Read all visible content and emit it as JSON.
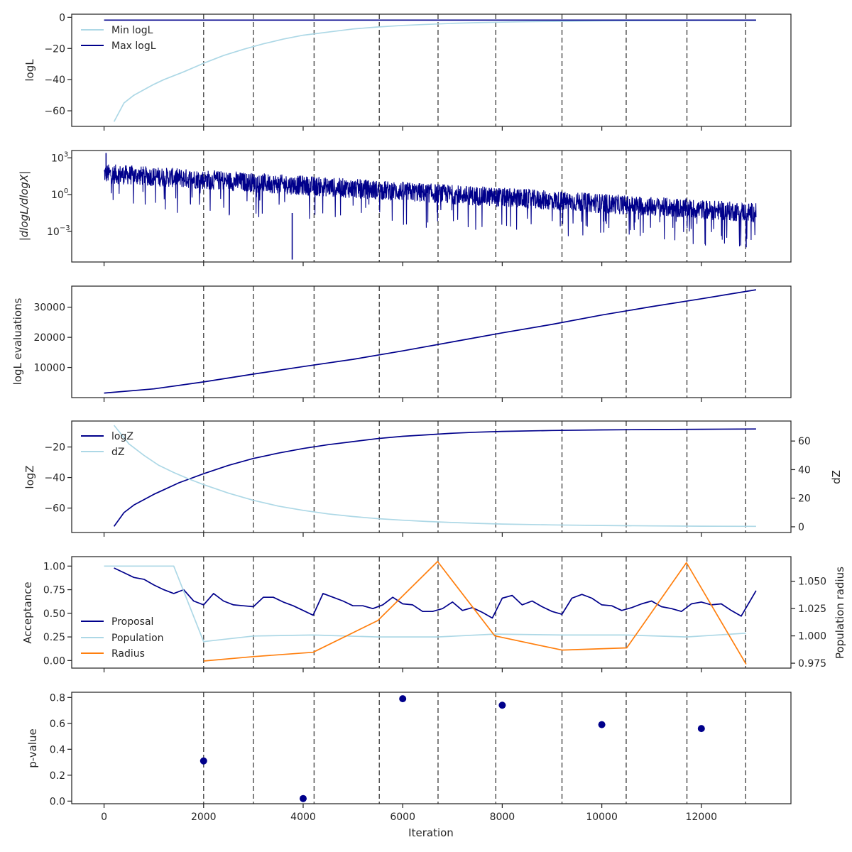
{
  "colors": {
    "navy": "#00008b",
    "lightblue": "#add8e6",
    "orange": "#ff7f0e",
    "dashed": "#555555"
  },
  "chart_data": [
    {
      "id": "loglikelihood",
      "type": "line",
      "ylabel": "logL",
      "ylim": [
        -70,
        2
      ],
      "yticks": [
        {
          "v": 0,
          "label": "0"
        },
        {
          "v": -20,
          "label": "−20"
        },
        {
          "v": -40,
          "label": "−40"
        },
        {
          "v": -60,
          "label": "−60"
        }
      ],
      "legend": {
        "position": "upper-left",
        "entries": [
          "Min logL",
          "Max logL"
        ]
      },
      "series": [
        {
          "name": "Min logL",
          "color": "lightblue",
          "x": [
            200,
            400,
            600,
            800,
            1000,
            1200,
            1400,
            1600,
            2000,
            2400,
            2800,
            3200,
            3600,
            4000,
            4500,
            5000,
            5500,
            6000,
            6500,
            7000,
            7500,
            8000,
            8500,
            9000,
            10000,
            11000,
            12000,
            13100
          ],
          "y": [
            -67,
            -55,
            -50,
            -46.5,
            -43,
            -40,
            -37.5,
            -35,
            -29.5,
            -24.5,
            -20.5,
            -17,
            -14,
            -11.5,
            -9.5,
            -7.5,
            -6.2,
            -5.2,
            -4.5,
            -3.9,
            -3.4,
            -3.1,
            -2.8,
            -2.6,
            -2.3,
            -2.1,
            -2.0,
            -1.9
          ]
        },
        {
          "name": "Max logL",
          "color": "navy",
          "x": [
            0,
            13100
          ],
          "y": [
            -1.8,
            -1.8
          ]
        }
      ]
    },
    {
      "id": "dlogl",
      "type": "line",
      "ylabel": "|dlogL/dlogX|",
      "yscale": "log",
      "ylim": [
        -5.5,
        3.6
      ],
      "yticks": [
        {
          "v": 3,
          "label": "10",
          "sup": "3"
        },
        {
          "v": 0,
          "label": "10",
          "sup": "0"
        },
        {
          "v": -3,
          "label": "10",
          "sup": "−3"
        }
      ],
      "series": [
        {
          "name": "|dlogL/dlogX|",
          "color": "navy",
          "trend": {
            "x": [
              0,
              13100
            ],
            "log10": [
              1.8,
              -1.4
            ]
          },
          "spikes": [
            {
              "x": 40,
              "log10": 3.4
            },
            {
              "x": 3780,
              "log10": -5.3
            },
            {
              "x": 12900,
              "log10": -4.3
            }
          ]
        }
      ]
    },
    {
      "id": "evaluations",
      "type": "line",
      "ylabel": "logL evaluations",
      "ylim": [
        0,
        37000
      ],
      "yticks": [
        {
          "v": 10000,
          "label": "10000"
        },
        {
          "v": 20000,
          "label": "20000"
        },
        {
          "v": 30000,
          "label": "30000"
        }
      ],
      "series": [
        {
          "name": "logL evaluations",
          "color": "navy",
          "x": [
            0,
            1000,
            2000,
            3000,
            4000,
            5000,
            6000,
            7000,
            8000,
            9000,
            10000,
            11000,
            12000,
            13100
          ],
          "y": [
            1500,
            2900,
            5200,
            7800,
            10300,
            12700,
            15500,
            18500,
            21500,
            24300,
            27400,
            30200,
            32800,
            35800
          ]
        }
      ]
    },
    {
      "id": "evidence",
      "type": "line",
      "ylabel": "logZ",
      "ylabel_right": "dZ",
      "ylim": [
        -76,
        -3
      ],
      "ylim_right": [
        -4,
        74
      ],
      "yticks": [
        {
          "v": -20,
          "label": "−20"
        },
        {
          "v": -40,
          "label": "−40"
        },
        {
          "v": -60,
          "label": "−60"
        }
      ],
      "yticks_right": [
        {
          "v": 0,
          "label": "0"
        },
        {
          "v": 20,
          "label": "20"
        },
        {
          "v": 40,
          "label": "40"
        },
        {
          "v": 60,
          "label": "60"
        }
      ],
      "legend": {
        "position": "upper-left",
        "entries": [
          "logZ",
          "dZ"
        ]
      },
      "series": [
        {
          "name": "logZ",
          "color": "navy",
          "axis": "left",
          "x": [
            200,
            400,
            600,
            800,
            1000,
            1200,
            1500,
            2000,
            2500,
            3000,
            3500,
            4000,
            4500,
            5000,
            5500,
            6000,
            6500,
            7000,
            7500,
            8000,
            9000,
            10000,
            11000,
            12000,
            13100
          ],
          "y": [
            -72,
            -63,
            -58,
            -54.5,
            -51,
            -48,
            -43.5,
            -37.5,
            -32,
            -27.5,
            -24,
            -21,
            -18.5,
            -16.5,
            -14.5,
            -13,
            -12,
            -11,
            -10.3,
            -9.8,
            -9.2,
            -8.8,
            -8.6,
            -8.4,
            -8.2
          ]
        },
        {
          "name": "dZ",
          "color": "lightblue",
          "axis": "right",
          "x": [
            200,
            500,
            800,
            1100,
            1400,
            1700,
            2000,
            2500,
            3000,
            3500,
            4000,
            4500,
            5000,
            5500,
            6000,
            6500,
            7000,
            7500,
            8000,
            9000,
            10000,
            11000,
            12000,
            13100
          ],
          "y": [
            71,
            58,
            50,
            43,
            38,
            33.5,
            29.5,
            23.5,
            18.5,
            14.5,
            11.5,
            9,
            7.2,
            5.7,
            4.6,
            3.7,
            3.0,
            2.4,
            1.9,
            1.3,
            0.9,
            0.6,
            0.4,
            0.3
          ]
        }
      ]
    },
    {
      "id": "acceptance",
      "type": "line",
      "ylabel": "Acceptance",
      "ylabel_right": "Population radius",
      "ylim": [
        -0.08,
        1.1
      ],
      "ylim_right": [
        0.9705,
        1.0725
      ],
      "yticks": [
        {
          "v": 1.0,
          "label": "1.00"
        },
        {
          "v": 0.75,
          "label": "0.75"
        },
        {
          "v": 0.5,
          "label": "0.50"
        },
        {
          "v": 0.25,
          "label": "0.25"
        },
        {
          "v": 0.0,
          "label": "0.00"
        }
      ],
      "yticks_right": [
        {
          "v": 1.05,
          "label": "1.050"
        },
        {
          "v": 1.025,
          "label": "1.025"
        },
        {
          "v": 1.0,
          "label": "1.000"
        },
        {
          "v": 0.975,
          "label": "0.975"
        }
      ],
      "legend": {
        "position": "lower-left",
        "entries": [
          "Proposal",
          "Population",
          "Radius"
        ]
      },
      "series": [
        {
          "name": "Proposal",
          "color": "navy",
          "axis": "left",
          "x": [
            200,
            400,
            600,
            800,
            1000,
            1200,
            1400,
            1600,
            1800,
            2000,
            2200,
            2400,
            2600,
            2800,
            3000,
            3200,
            3400,
            3600,
            3800,
            4000,
            4200,
            4400,
            4600,
            4800,
            5000,
            5200,
            5400,
            5600,
            5800,
            6000,
            6200,
            6400,
            6600,
            6800,
            7000,
            7200,
            7400,
            7600,
            7800,
            8000,
            8200,
            8400,
            8600,
            8800,
            9000,
            9200,
            9400,
            9600,
            9800,
            10000,
            10200,
            10400,
            10600,
            10800,
            11000,
            11200,
            11400,
            11600,
            11800,
            12000,
            12200,
            12400,
            12600,
            12800,
            13100
          ],
          "y": [
            0.98,
            0.93,
            0.88,
            0.86,
            0.8,
            0.75,
            0.71,
            0.75,
            0.63,
            0.59,
            0.71,
            0.63,
            0.59,
            0.58,
            0.57,
            0.67,
            0.67,
            0.62,
            0.58,
            0.53,
            0.48,
            0.71,
            0.67,
            0.63,
            0.58,
            0.58,
            0.55,
            0.59,
            0.67,
            0.6,
            0.59,
            0.52,
            0.52,
            0.55,
            0.62,
            0.53,
            0.56,
            0.51,
            0.45,
            0.66,
            0.69,
            0.59,
            0.63,
            0.57,
            0.52,
            0.49,
            0.66,
            0.7,
            0.66,
            0.59,
            0.58,
            0.53,
            0.56,
            0.6,
            0.63,
            0.57,
            0.55,
            0.52,
            0.6,
            0.62,
            0.59,
            0.6,
            0.53,
            0.47,
            0.74
          ]
        },
        {
          "name": "Population",
          "color": "lightblue",
          "axis": "left",
          "x": [
            0,
            1400,
            2000,
            3000,
            4200,
            5500,
            6700,
            7850,
            9200,
            10500,
            11700,
            12900
          ],
          "y": [
            1.0,
            1.0,
            0.2,
            0.26,
            0.27,
            0.25,
            0.25,
            0.28,
            0.27,
            0.27,
            0.25,
            0.29
          ]
        },
        {
          "name": "Radius",
          "color": "orange",
          "axis": "right",
          "x": [
            2000,
            3000,
            4200,
            5500,
            6700,
            7850,
            9200,
            10500,
            11700,
            12900
          ],
          "y": [
            0.977,
            0.981,
            0.985,
            1.014,
            1.068,
            1.0,
            0.987,
            0.989,
            1.067,
            0.974
          ]
        }
      ]
    },
    {
      "id": "pvalue",
      "type": "scatter",
      "ylabel": "p-value",
      "xlabel": "Iteration",
      "ylim": [
        -0.02,
        0.84
      ],
      "yticks": [
        {
          "v": 0.8,
          "label": "0.8"
        },
        {
          "v": 0.6,
          "label": "0.6"
        },
        {
          "v": 0.4,
          "label": "0.4"
        },
        {
          "v": 0.2,
          "label": "0.2"
        },
        {
          "v": 0.0,
          "label": "0.0"
        }
      ],
      "series": [
        {
          "name": "p-value",
          "color": "navy",
          "x": [
            2000,
            4000,
            6000,
            8000,
            10000,
            12000
          ],
          "y": [
            0.31,
            0.02,
            0.79,
            0.74,
            0.59,
            0.56
          ]
        }
      ]
    }
  ],
  "shared": {
    "xlim": [
      -650,
      13800
    ],
    "xticks": [
      {
        "v": 0,
        "label": "0"
      },
      {
        "v": 2000,
        "label": "2000"
      },
      {
        "v": 4000,
        "label": "4000"
      },
      {
        "v": 6000,
        "label": "6000"
      },
      {
        "v": 8000,
        "label": "8000"
      },
      {
        "v": 10000,
        "label": "10000"
      },
      {
        "v": 12000,
        "label": "12000"
      }
    ],
    "vlines": [
      2000,
      3000,
      4220,
      5530,
      6710,
      7870,
      9200,
      10490,
      11710,
      12890
    ]
  }
}
